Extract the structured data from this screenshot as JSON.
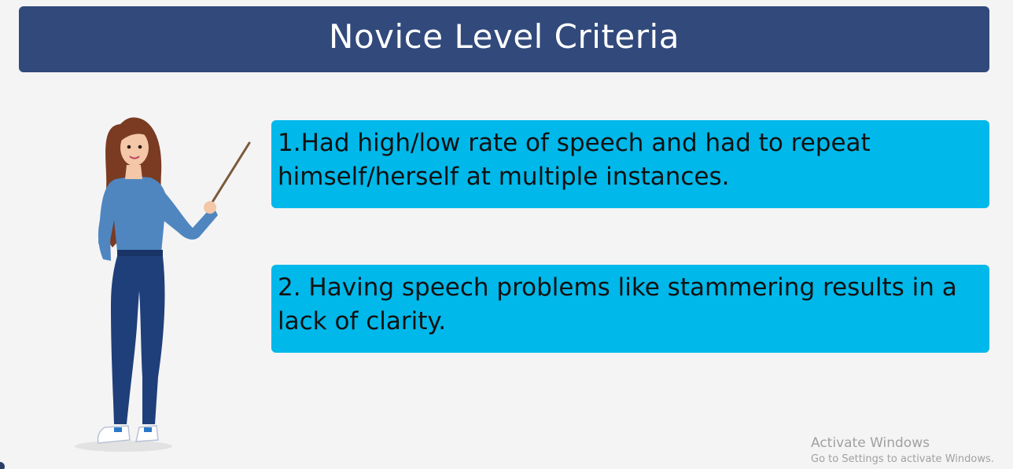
{
  "slide": {
    "title": "Novice Level Criteria",
    "criteria": [
      "1.Had high/low rate of speech and had to repeat himself/herself at multiple instances.",
      "2. Having speech problems like stammering results in a lack of clarity."
    ]
  },
  "illustration": {
    "subject": "teacher-with-pointer",
    "colors": {
      "hair": "#7a3b22",
      "shirt": "#4f86c0",
      "jeans": "#1f3f7a",
      "skin": "#f3c7a8",
      "pointer": "#7b5a3a"
    }
  },
  "watermark": {
    "line1": "Activate Windows",
    "line2": "Go to Settings to activate Windows."
  },
  "colors": {
    "title_bg": "#31497b",
    "box_bg": "#00b8ea",
    "page_bg": "#f4f4f4"
  }
}
